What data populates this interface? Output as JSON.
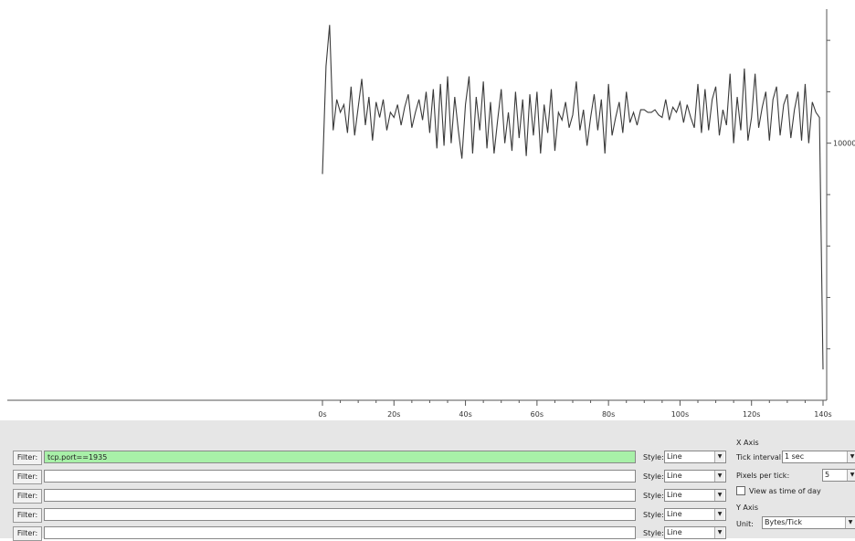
{
  "chart_data": {
    "type": "line",
    "x": [
      0,
      1,
      2,
      3,
      4,
      5,
      6,
      7,
      8,
      9,
      10,
      11,
      12,
      13,
      14,
      15,
      16,
      17,
      18,
      19,
      20,
      21,
      22,
      23,
      24,
      25,
      26,
      27,
      28,
      29,
      30,
      31,
      32,
      33,
      34,
      35,
      36,
      37,
      38,
      39,
      40,
      41,
      42,
      43,
      44,
      45,
      46,
      47,
      48,
      49,
      50,
      51,
      52,
      53,
      54,
      55,
      56,
      57,
      58,
      59,
      60,
      61,
      62,
      63,
      64,
      65,
      66,
      67,
      68,
      69,
      70,
      71,
      72,
      73,
      74,
      75,
      76,
      77,
      78,
      79,
      80,
      81,
      82,
      83,
      84,
      85,
      86,
      87,
      88,
      89,
      90,
      91,
      92,
      93,
      94,
      95,
      96,
      97,
      98,
      99,
      100,
      101,
      102,
      103,
      104,
      105,
      106,
      107,
      108,
      109,
      110,
      111,
      112,
      113,
      114,
      115,
      116,
      117,
      118,
      119,
      120,
      121,
      122,
      123,
      124,
      125,
      126,
      127,
      128,
      129,
      130,
      131,
      132,
      133,
      134,
      135,
      136,
      137,
      138,
      139,
      140
    ],
    "series": [
      {
        "color": "#3a3a3a",
        "values": [
          8800,
          13000,
          14600,
          10500,
          11700,
          11200,
          11500,
          10400,
          12200,
          10300,
          11400,
          12500,
          10700,
          11800,
          10100,
          11600,
          11000,
          11700,
          10500,
          11200,
          11000,
          11500,
          10700,
          11400,
          11900,
          10600,
          11200,
          11700,
          10900,
          12000,
          10400,
          12100,
          9800,
          12300,
          9900,
          12600,
          10000,
          11800,
          10500,
          9400,
          11500,
          12600,
          9600,
          11800,
          10500,
          12400,
          9800,
          11600,
          9600,
          10900,
          12100,
          10000,
          11200,
          9700,
          12000,
          10200,
          11700,
          9500,
          11900,
          10300,
          12000,
          9600,
          11500,
          10400,
          12100,
          9700,
          11200,
          10900,
          11600,
          10600,
          11100,
          12400,
          10500,
          11300,
          9900,
          11000,
          11900,
          10500,
          11700,
          9600,
          12300,
          10300,
          11000,
          11600,
          10400,
          12000,
          10800,
          11200,
          10700,
          11300,
          11300,
          11200,
          11200,
          11300,
          11100,
          11000,
          11700,
          10900,
          11400,
          11200,
          11600,
          10800,
          11500,
          11000,
          10600,
          12300,
          10400,
          12100,
          10500,
          11700,
          12200,
          10300,
          11300,
          10700,
          12700,
          10000,
          11800,
          10500,
          12900,
          10100,
          11000,
          12700,
          10600,
          11400,
          12000,
          10100,
          11700,
          12200,
          10300,
          11500,
          11900,
          10200,
          11300,
          12000,
          10100,
          12300,
          10000,
          11600,
          11200,
          11000,
          1200
        ]
      }
    ],
    "xlim": [
      0,
      140
    ],
    "xticks": [
      {
        "value": 0,
        "label": "0s"
      },
      {
        "value": 20,
        "label": "20s"
      },
      {
        "value": 40,
        "label": "40s"
      },
      {
        "value": 60,
        "label": "60s"
      },
      {
        "value": 80,
        "label": "80s"
      },
      {
        "value": 100,
        "label": "100s"
      },
      {
        "value": 120,
        "label": "120s"
      },
      {
        "value": 140,
        "label": "140s"
      }
    ],
    "xminor_ticks": [
      5,
      10,
      15,
      25,
      30,
      35,
      45,
      50,
      55,
      65,
      70,
      75,
      85,
      90,
      95,
      105,
      110,
      115,
      125,
      130,
      135
    ],
    "ylim": [
      0,
      15000
    ],
    "yticks": [
      10000
    ],
    "yminor_ticks": [
      2000,
      4000,
      6000,
      8000,
      12000,
      14000
    ]
  },
  "controls": {
    "graphs": [
      {
        "button": "Filter:",
        "filter": "tcp.port==1935",
        "style_label": "Style:",
        "style": "Line"
      },
      {
        "button": "Filter:",
        "style_label": "Style:",
        "style": "Line"
      },
      {
        "button": "Filter:",
        "style_label": "Style:",
        "style": "Line"
      },
      {
        "button": "Filter:",
        "style_label": "Style:",
        "style": "Line"
      },
      {
        "button": "Filter:",
        "style_label": "Style:",
        "style": "Line"
      }
    ],
    "x_axis": {
      "title": "X Axis",
      "tick_interval_label": "Tick interval:",
      "tick_interval": "1 sec",
      "pixels_label": "Pixels per tick:",
      "pixels": "5",
      "time_of_day": "View as time of day"
    },
    "y_axis": {
      "title": "Y Axis",
      "unit_label": "Unit:",
      "unit": "Bytes/Tick"
    }
  }
}
